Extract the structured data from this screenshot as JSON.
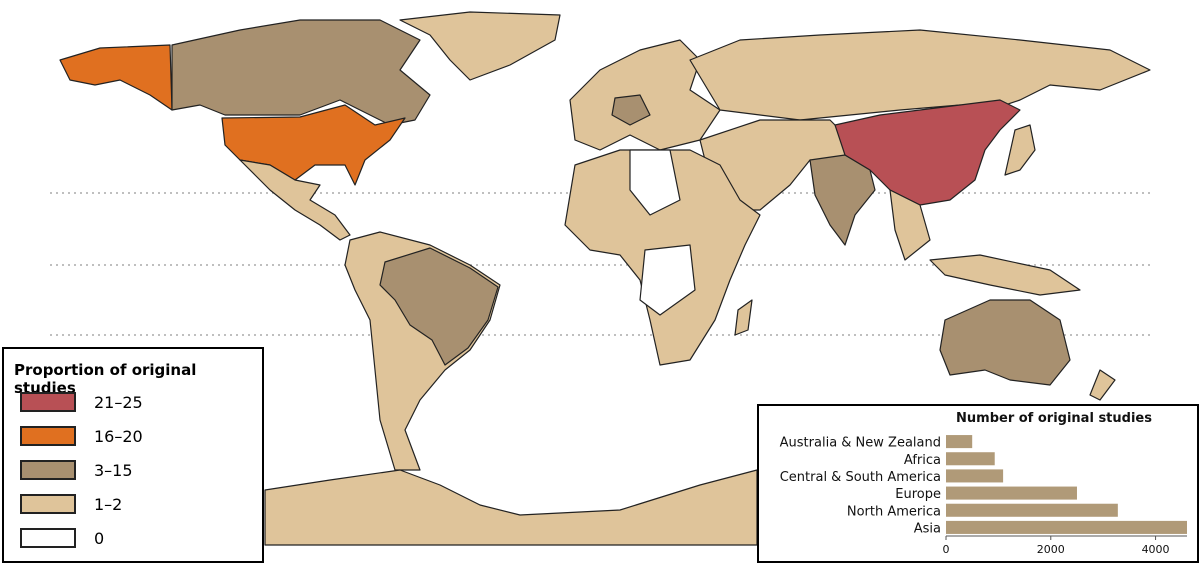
{
  "legend": {
    "title": "Proportion of original studies",
    "items": [
      {
        "label": "21–25",
        "color": "#b85055"
      },
      {
        "label": "16–20",
        "color": "#e07020"
      },
      {
        "label": "3–15",
        "color": "#a89070"
      },
      {
        "label": "1–2",
        "color": "#dfc49a"
      },
      {
        "label": "0",
        "color": "#ffffff"
      }
    ]
  },
  "chart_data": {
    "type": "bar",
    "title": "Number of original studies",
    "categories": [
      "Australia & New Zealand",
      "Africa",
      "Central & South America",
      "Europe",
      "North America",
      "Asia"
    ],
    "values": [
      500,
      930,
      1090,
      2500,
      3280,
      4600
    ],
    "color": "#b09a78",
    "xlim": [
      0,
      4600
    ],
    "xticks": [
      0,
      2000,
      4000
    ]
  }
}
